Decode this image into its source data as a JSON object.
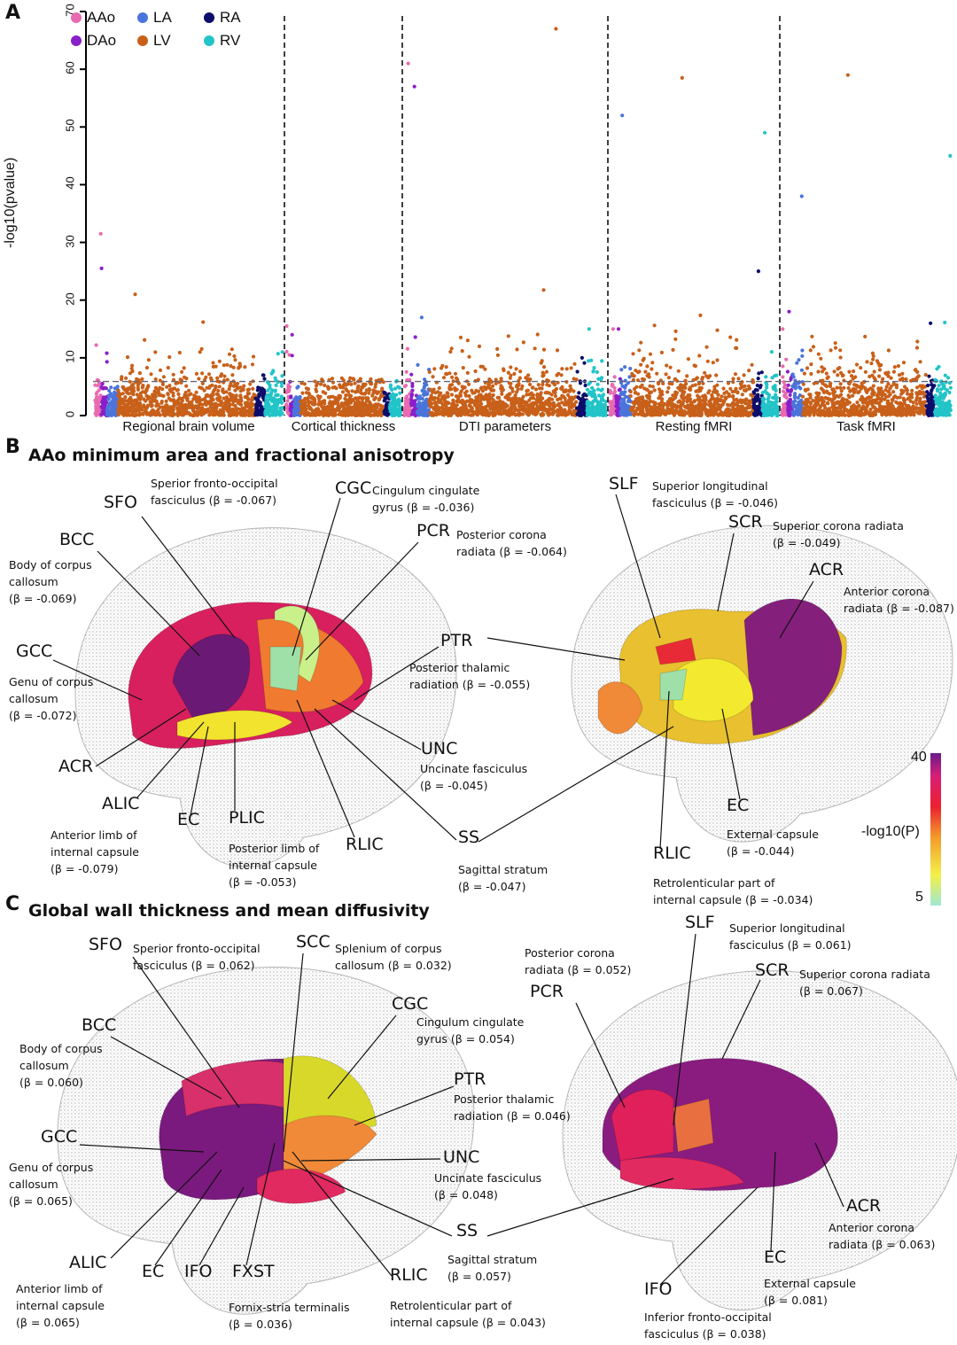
{
  "panels": {
    "a": {
      "letter": "A"
    },
    "b": {
      "letter": "B",
      "title": "AAo minimum area and fractional anisotropy"
    },
    "c": {
      "letter": "C",
      "title": "Global wall thickness and mean diffusivity"
    }
  },
  "colors": {
    "AAo": "#e86bb0",
    "DAo": "#8a1fc9",
    "LA": "#4a74dc",
    "LV": "#c8601a",
    "RA": "#0d0d6b",
    "RV": "#22c4c8"
  },
  "chart_data": {
    "type": "scatter",
    "subtype": "manhattan",
    "ylabel": "-log10(pvalue)",
    "ylim": [
      0,
      70
    ],
    "yticks": [
      "0",
      "10",
      "20",
      "30",
      "40",
      "50",
      "60",
      "70"
    ],
    "threshold": 5.9,
    "legend": {
      "placement": "top-left",
      "entries": [
        "AAo",
        "DAo",
        "LA",
        "LV",
        "RA",
        "RV"
      ]
    },
    "groups": [
      "AAo",
      "DAo",
      "LA",
      "LV",
      "RA",
      "RV"
    ],
    "sections": [
      {
        "name": "Regional brain volume",
        "max": {
          "AAo": 31.5,
          "DAo": 25.5,
          "LA": 5,
          "LV": 21,
          "RA": 7,
          "RV": 11
        }
      },
      {
        "name": "Cortical thickness",
        "max": {
          "AAo": 15.5,
          "DAo": 14,
          "LA": 5,
          "LV": 6.5,
          "RA": 4,
          "RV": 6
        }
      },
      {
        "name": "DTI parameters",
        "max": {
          "AAo": 61,
          "DAo": 57,
          "LA": 17,
          "LV": 67,
          "RA": 10,
          "RV": 15
        }
      },
      {
        "name": "Resting fMRI",
        "max": {
          "AAo": 15,
          "DAo": 15,
          "LA": 52,
          "LV": 58.5,
          "RA": 25,
          "RV": 49
        }
      },
      {
        "name": "Task fMRI",
        "max": {
          "AAo": 15,
          "DAo": 18,
          "LA": 38,
          "LV": 59,
          "RA": 16,
          "RV": 45
        }
      }
    ]
  },
  "panel_b": {
    "labels": [
      {
        "abbr": "SFO",
        "desc": "Sperior fronto-occipital\nfasciculus (β = -0.067)"
      },
      {
        "abbr": "CGC",
        "desc": "Cingulum cingulate\ngyrus (β = -0.036)"
      },
      {
        "abbr": "BCC",
        "desc": "Body of corpus\ncallosum\n(β = -0.069)"
      },
      {
        "abbr": "PCR",
        "desc": "Posterior corona\nradiata (β = -0.064)"
      },
      {
        "abbr": "GCC",
        "desc": "Genu of corpus\ncallosum\n(β = -0.072)"
      },
      {
        "abbr": "PTR",
        "desc": "Posterior thalamic\nradiation (β = -0.055)"
      },
      {
        "abbr": "UNC",
        "desc": "Uncinate fasciculus\n(β = -0.045)"
      },
      {
        "abbr": "ACR",
        "desc": ""
      },
      {
        "abbr": "ALIC",
        "desc": "Anterior limb of\ninternal capsule\n(β = -0.079)"
      },
      {
        "abbr": "EC",
        "desc": ""
      },
      {
        "abbr": "PLIC",
        "desc": "Posterior limb of\ninternal capsule\n(β = -0.053)"
      },
      {
        "abbr": "RLIC",
        "desc": ""
      },
      {
        "abbr": "SS",
        "desc": "Sagittal stratum\n(β = -0.047)"
      },
      {
        "abbr": "SLF",
        "desc": "Superior longitudinal\nfasciculus (β = -0.046)"
      },
      {
        "abbr": "SCR",
        "desc": "Superior corona radiata\n(β = -0.049)"
      },
      {
        "abbr": "ACR",
        "desc": "Anterior corona\nradiata (β = -0.087)"
      },
      {
        "abbr": "EC",
        "desc": "External capsule\n(β = -0.044)"
      },
      {
        "abbr": "RLIC",
        "desc": "Retrolenticular part of\ninternal capsule (β = -0.034)"
      }
    ],
    "colorbar": {
      "max": "40",
      "min": "5",
      "label": "-log10(P)"
    }
  },
  "panel_c": {
    "labels": [
      {
        "abbr": "SFO",
        "desc": "Sperior fronto-occipital\nfasciculus (β = 0.062)"
      },
      {
        "abbr": "SCC",
        "desc": "Splenium of corpus\ncallosum (β = 0.032)"
      },
      {
        "abbr": "BCC",
        "desc": "Body of corpus\ncallosum\n(β = 0.060)"
      },
      {
        "abbr": "CGC",
        "desc": "Cingulum cingulate\ngyrus (β = 0.054)"
      },
      {
        "abbr": "PTR",
        "desc": "Posterior thalamic\nradiation (β = 0.046)"
      },
      {
        "abbr": "GCC",
        "desc": "Genu of corpus\ncallosum\n(β = 0.065)"
      },
      {
        "abbr": "UNC",
        "desc": "Uncinate fasciculus\n(β = 0.048)"
      },
      {
        "abbr": "SS",
        "desc": "Sagittal stratum\n(β = 0.057)"
      },
      {
        "abbr": "ALIC",
        "desc": "Anterior limb of\ninternal capsule\n(β = 0.065)"
      },
      {
        "abbr": "EC",
        "desc": ""
      },
      {
        "abbr": "IFO",
        "desc": ""
      },
      {
        "abbr": "FXST",
        "desc": "Fornix-stria terminalis\n(β = 0.036)"
      },
      {
        "abbr": "RLIC",
        "desc": "Retrolenticular part of\ninternal capsule (β = 0.043)"
      },
      {
        "abbr": "PCR",
        "desc": "Posterior corona\nradiata (β = 0.052)"
      },
      {
        "abbr": "SLF",
        "desc": "Superior longitudinal\nfasciculus (β = 0.061)"
      },
      {
        "abbr": "SCR",
        "desc": "Superior corona radiata\n(β = 0.067)"
      },
      {
        "abbr": "ACR",
        "desc": "Anterior corona\nradiata (β = 0.063)"
      },
      {
        "abbr": "EC",
        "desc": "External capsule\n(β = 0.081)"
      },
      {
        "abbr": "IFO",
        "desc": "Inferior fronto-occipital\nfasciculus (β = 0.038)"
      }
    ]
  }
}
